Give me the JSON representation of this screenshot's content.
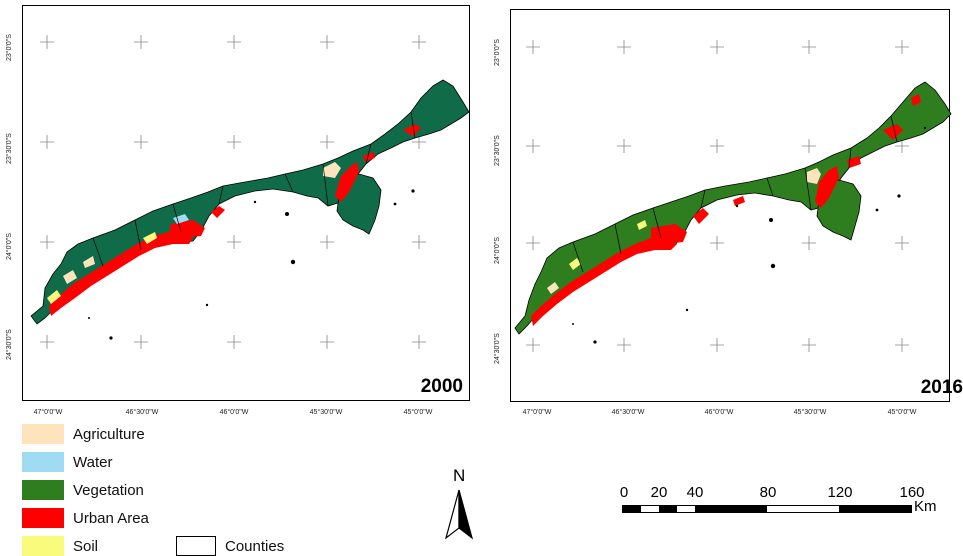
{
  "maps": [
    {
      "year": "2000",
      "lat_labels": [
        "23°0'0\"S",
        "23°30'0\"S",
        "24°0'0\"S",
        "24°30'0\"S"
      ],
      "lon_labels": [
        "47°0'0\"W",
        "46°30'0\"W",
        "46°0'0\"W",
        "45°30'0\"W",
        "45°0'0\"W"
      ]
    },
    {
      "year": "2016",
      "lat_labels": [
        "23°0'0\"S",
        "23°30'0\"S",
        "24°0'0\"S",
        "24°30'0\"S"
      ],
      "lon_labels": [
        "47°0'0\"W",
        "46°30'0\"W",
        "46°0'0\"W",
        "45°30'0\"W",
        "45°0'0\"W"
      ]
    }
  ],
  "legend": {
    "items": [
      {
        "label": "Agriculture",
        "color": "#fde4bc"
      },
      {
        "label": "Water",
        "color": "#9fdcf4"
      },
      {
        "label": "Vegetation",
        "color": "#2e7d1f"
      },
      {
        "label": "Urban Area",
        "color": "#ff0000"
      },
      {
        "label": "Soil",
        "color": "#f8fb7c"
      }
    ],
    "counties_label": "Counties"
  },
  "colors": {
    "vegetation_2000": "#0f6b48",
    "vegetation_2016": "#2e7d1f",
    "urban": "#ff0000",
    "agriculture": "#fde4bc",
    "soil": "#f8fb7c",
    "water": "#9fdcf4"
  },
  "north_arrow": {
    "label": "N"
  },
  "scale": {
    "labels": [
      "0",
      "20",
      "40",
      "80",
      "120",
      "160"
    ],
    "unit": "Km"
  }
}
